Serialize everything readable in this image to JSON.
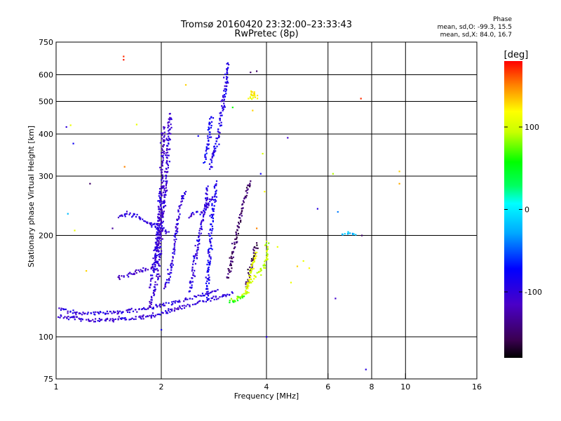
{
  "chart_data": {
    "type": "scatter",
    "title": "Tromsø 20160420 23:32:00–23:33:43",
    "subtitle": "RwPretec (8p)",
    "xlabel": "Frequency [MHz]",
    "ylabel": "Stationary phase Virtual Height [km]",
    "xscale": "log",
    "yscale": "log",
    "xlim": [
      1,
      16
    ],
    "ylim": [
      75,
      750
    ],
    "xticks": [
      1,
      2,
      4,
      6,
      8,
      10,
      16
    ],
    "xtick_labels": [
      "1",
      "2",
      "4",
      "6",
      "8",
      "10",
      "16"
    ],
    "yticks": [
      75,
      100,
      200,
      300,
      400,
      500,
      600,
      750
    ],
    "ytick_labels": [
      "75",
      "100",
      "200",
      "300",
      "400",
      "500",
      "600",
      "750"
    ],
    "grid": true,
    "colorbar": {
      "label": "[deg]",
      "range": [
        -180,
        180
      ],
      "ticks": [
        100,
        0,
        -100
      ],
      "tick_labels": [
        "100",
        "0",
        "-100"
      ]
    },
    "phase_stats": {
      "title": "Phase",
      "line_o": "mean, sd,O: -99.3, 15.5",
      "line_x": "mean, sd,X:  84.0, 16.7"
    },
    "traces": [
      {
        "phase": -100,
        "points": [
          [
            1.0,
            115
          ],
          [
            1.1,
            114
          ],
          [
            1.3,
            112
          ],
          [
            1.5,
            113
          ],
          [
            1.7,
            114
          ],
          [
            1.9,
            116
          ],
          [
            2.1,
            119
          ],
          [
            2.4,
            124
          ],
          [
            2.7,
            128
          ],
          [
            3.0,
            132
          ],
          [
            3.2,
            135
          ]
        ]
      },
      {
        "phase": -98,
        "points": [
          [
            1.03,
            121
          ],
          [
            1.1,
            119
          ],
          [
            1.2,
            117
          ],
          [
            1.4,
            118
          ],
          [
            1.6,
            119
          ],
          [
            1.8,
            121
          ],
          [
            2.0,
            124
          ],
          [
            2.3,
            128
          ],
          [
            2.6,
            133
          ],
          [
            2.9,
            138
          ]
        ]
      },
      {
        "phase": -105,
        "points": [
          [
            1.85,
            123
          ],
          [
            1.9,
            135
          ],
          [
            1.95,
            150
          ],
          [
            1.97,
            170
          ],
          [
            1.98,
            190
          ],
          [
            2.0,
            210
          ],
          [
            2.02,
            240
          ],
          [
            2.05,
            280
          ],
          [
            2.08,
            330
          ],
          [
            2.1,
            400
          ],
          [
            2.12,
            460
          ]
        ]
      },
      {
        "phase": -110,
        "points": [
          [
            1.5,
            150
          ],
          [
            1.6,
            153
          ],
          [
            1.7,
            156
          ],
          [
            1.8,
            158
          ],
          [
            1.9,
            160
          ],
          [
            1.92,
            175
          ],
          [
            1.95,
            190
          ],
          [
            1.97,
            205
          ],
          [
            1.99,
            230
          ],
          [
            2.0,
            265
          ],
          [
            2.01,
            310
          ],
          [
            2.02,
            360
          ],
          [
            2.03,
            420
          ]
        ]
      },
      {
        "phase": -102,
        "points": [
          [
            1.5,
            228
          ],
          [
            1.6,
            232
          ],
          [
            1.7,
            228
          ],
          [
            1.8,
            220
          ],
          [
            1.9,
            215
          ],
          [
            2.0,
            212
          ],
          [
            2.1,
            205
          ]
        ]
      },
      {
        "phase": -100,
        "points": [
          [
            1.85,
            140
          ],
          [
            1.9,
            160
          ],
          [
            1.93,
            180
          ],
          [
            1.95,
            200
          ],
          [
            1.96,
            220
          ],
          [
            1.97,
            240
          ],
          [
            1.98,
            270
          ]
        ]
      },
      {
        "phase": -100,
        "points": [
          [
            2.05,
            140
          ],
          [
            2.1,
            150
          ],
          [
            2.15,
            170
          ],
          [
            2.2,
            200
          ],
          [
            2.25,
            240
          ],
          [
            2.3,
            260
          ],
          [
            2.35,
            270
          ]
        ]
      },
      {
        "phase": -95,
        "points": [
          [
            2.4,
            135
          ],
          [
            2.45,
            150
          ],
          [
            2.5,
            170
          ],
          [
            2.55,
            190
          ],
          [
            2.6,
            210
          ],
          [
            2.65,
            230
          ],
          [
            2.68,
            250
          ],
          [
            2.7,
            268
          ],
          [
            2.72,
            280
          ]
        ]
      },
      {
        "phase": -85,
        "points": [
          [
            2.7,
            132
          ],
          [
            2.72,
            150
          ],
          [
            2.74,
            170
          ],
          [
            2.76,
            190
          ],
          [
            2.78,
            210
          ],
          [
            2.8,
            230
          ],
          [
            2.82,
            250
          ],
          [
            2.85,
            270
          ],
          [
            2.88,
            290
          ]
        ]
      },
      {
        "phase": -90,
        "points": [
          [
            2.75,
            320
          ],
          [
            2.8,
            340
          ],
          [
            2.85,
            360
          ],
          [
            2.9,
            390
          ],
          [
            2.95,
            430
          ],
          [
            3.0,
            480
          ],
          [
            3.03,
            520
          ],
          [
            3.06,
            570
          ],
          [
            3.08,
            620
          ],
          [
            3.1,
            650
          ]
        ]
      },
      {
        "phase": -80,
        "points": [
          [
            2.65,
            330
          ],
          [
            2.7,
            350
          ],
          [
            2.72,
            380
          ],
          [
            2.75,
            410
          ],
          [
            2.78,
            450
          ]
        ]
      },
      {
        "phase": -100,
        "points": [
          [
            2.4,
            228
          ],
          [
            2.5,
            235
          ],
          [
            2.6,
            232
          ],
          [
            2.7,
            245
          ],
          [
            2.8,
            260
          ]
        ]
      },
      {
        "phase": -150,
        "points": [
          [
            3.1,
            150
          ],
          [
            3.15,
            160
          ],
          [
            3.2,
            175
          ],
          [
            3.25,
            190
          ],
          [
            3.3,
            205
          ],
          [
            3.35,
            220
          ],
          [
            3.4,
            235
          ],
          [
            3.45,
            250
          ],
          [
            3.5,
            265
          ],
          [
            3.6,
            290
          ]
        ]
      },
      {
        "phase": -160,
        "points": [
          [
            3.5,
            140
          ],
          [
            3.55,
            150
          ],
          [
            3.6,
            160
          ],
          [
            3.65,
            170
          ],
          [
            3.7,
            180
          ],
          [
            3.75,
            190
          ]
        ]
      },
      {
        "phase": 95,
        "points": [
          [
            3.2,
            128
          ],
          [
            3.3,
            130
          ],
          [
            3.4,
            133
          ],
          [
            3.5,
            136
          ],
          [
            3.55,
            140
          ],
          [
            3.6,
            145
          ],
          [
            3.7,
            150
          ],
          [
            3.8,
            155
          ],
          [
            3.9,
            160
          ],
          [
            4.0,
            170
          ],
          [
            4.0,
            180
          ],
          [
            4.0,
            192
          ]
        ]
      },
      {
        "phase": 110,
        "points": [
          [
            3.5,
            135
          ],
          [
            3.55,
            145
          ],
          [
            3.6,
            155
          ],
          [
            3.65,
            165
          ],
          [
            3.7,
            172
          ],
          [
            3.75,
            178
          ]
        ]
      },
      {
        "phase": 60,
        "points": [
          [
            3.15,
            127
          ],
          [
            3.25,
            128
          ],
          [
            3.35,
            130
          ],
          [
            3.45,
            132
          ]
        ]
      },
      {
        "phase": -20,
        "points": [
          [
            6.6,
            201
          ],
          [
            6.8,
            202
          ],
          [
            7.0,
            202
          ],
          [
            7.2,
            201
          ]
        ]
      },
      {
        "phase": 120,
        "points": [
          [
            3.6,
            540
          ],
          [
            3.65,
            520
          ],
          [
            3.7,
            535
          ],
          [
            3.75,
            515
          ],
          [
            3.55,
            510
          ]
        ]
      }
    ],
    "isolated_points": [
      {
        "x": 1.56,
        "y": 680,
        "phase": 170
      },
      {
        "x": 1.56,
        "y": 665,
        "phase": 175
      },
      {
        "x": 7.45,
        "y": 510,
        "phase": 170
      },
      {
        "x": 9.6,
        "y": 310,
        "phase": 130
      },
      {
        "x": 9.6,
        "y": 285,
        "phase": 140
      },
      {
        "x": 5.6,
        "y": 240,
        "phase": -95
      },
      {
        "x": 6.4,
        "y": 235,
        "phase": -40
      },
      {
        "x": 6.2,
        "y": 305,
        "phase": 90
      },
      {
        "x": 6.3,
        "y": 130,
        "phase": -110
      },
      {
        "x": 7.7,
        "y": 80,
        "phase": -95
      },
      {
        "x": 7.5,
        "y": 200,
        "phase": -150
      },
      {
        "x": 4.6,
        "y": 390,
        "phase": -110
      },
      {
        "x": 4.7,
        "y": 145,
        "phase": 110
      },
      {
        "x": 4.9,
        "y": 162,
        "phase": 130
      },
      {
        "x": 5.1,
        "y": 168,
        "phase": 110
      },
      {
        "x": 5.3,
        "y": 160,
        "phase": 120
      },
      {
        "x": 1.07,
        "y": 420,
        "phase": -100
      },
      {
        "x": 1.1,
        "y": 425,
        "phase": 110
      },
      {
        "x": 1.12,
        "y": 375,
        "phase": -80
      },
      {
        "x": 1.08,
        "y": 232,
        "phase": -20
      },
      {
        "x": 1.13,
        "y": 207,
        "phase": 110
      },
      {
        "x": 1.25,
        "y": 285,
        "phase": -150
      },
      {
        "x": 1.22,
        "y": 157,
        "phase": 130
      },
      {
        "x": 1.45,
        "y": 210,
        "phase": -130
      },
      {
        "x": 1.57,
        "y": 320,
        "phase": 150
      },
      {
        "x": 1.7,
        "y": 427,
        "phase": 110
      },
      {
        "x": 2.35,
        "y": 560,
        "phase": 130
      },
      {
        "x": 2.55,
        "y": 395,
        "phase": -80
      },
      {
        "x": 3.6,
        "y": 610,
        "phase": -150
      },
      {
        "x": 3.75,
        "y": 615,
        "phase": -150
      },
      {
        "x": 3.65,
        "y": 470,
        "phase": 130
      },
      {
        "x": 3.2,
        "y": 480,
        "phase": 60
      },
      {
        "x": 3.9,
        "y": 350,
        "phase": 100
      },
      {
        "x": 3.85,
        "y": 305,
        "phase": -80
      },
      {
        "x": 2.0,
        "y": 105,
        "phase": -80
      },
      {
        "x": 4.0,
        "y": 100,
        "phase": -95
      },
      {
        "x": 3.75,
        "y": 210,
        "phase": 150
      },
      {
        "x": 3.55,
        "y": 282,
        "phase": -150
      },
      {
        "x": 3.95,
        "y": 270,
        "phase": 120
      },
      {
        "x": 4.3,
        "y": 185,
        "phase": 110
      }
    ]
  }
}
